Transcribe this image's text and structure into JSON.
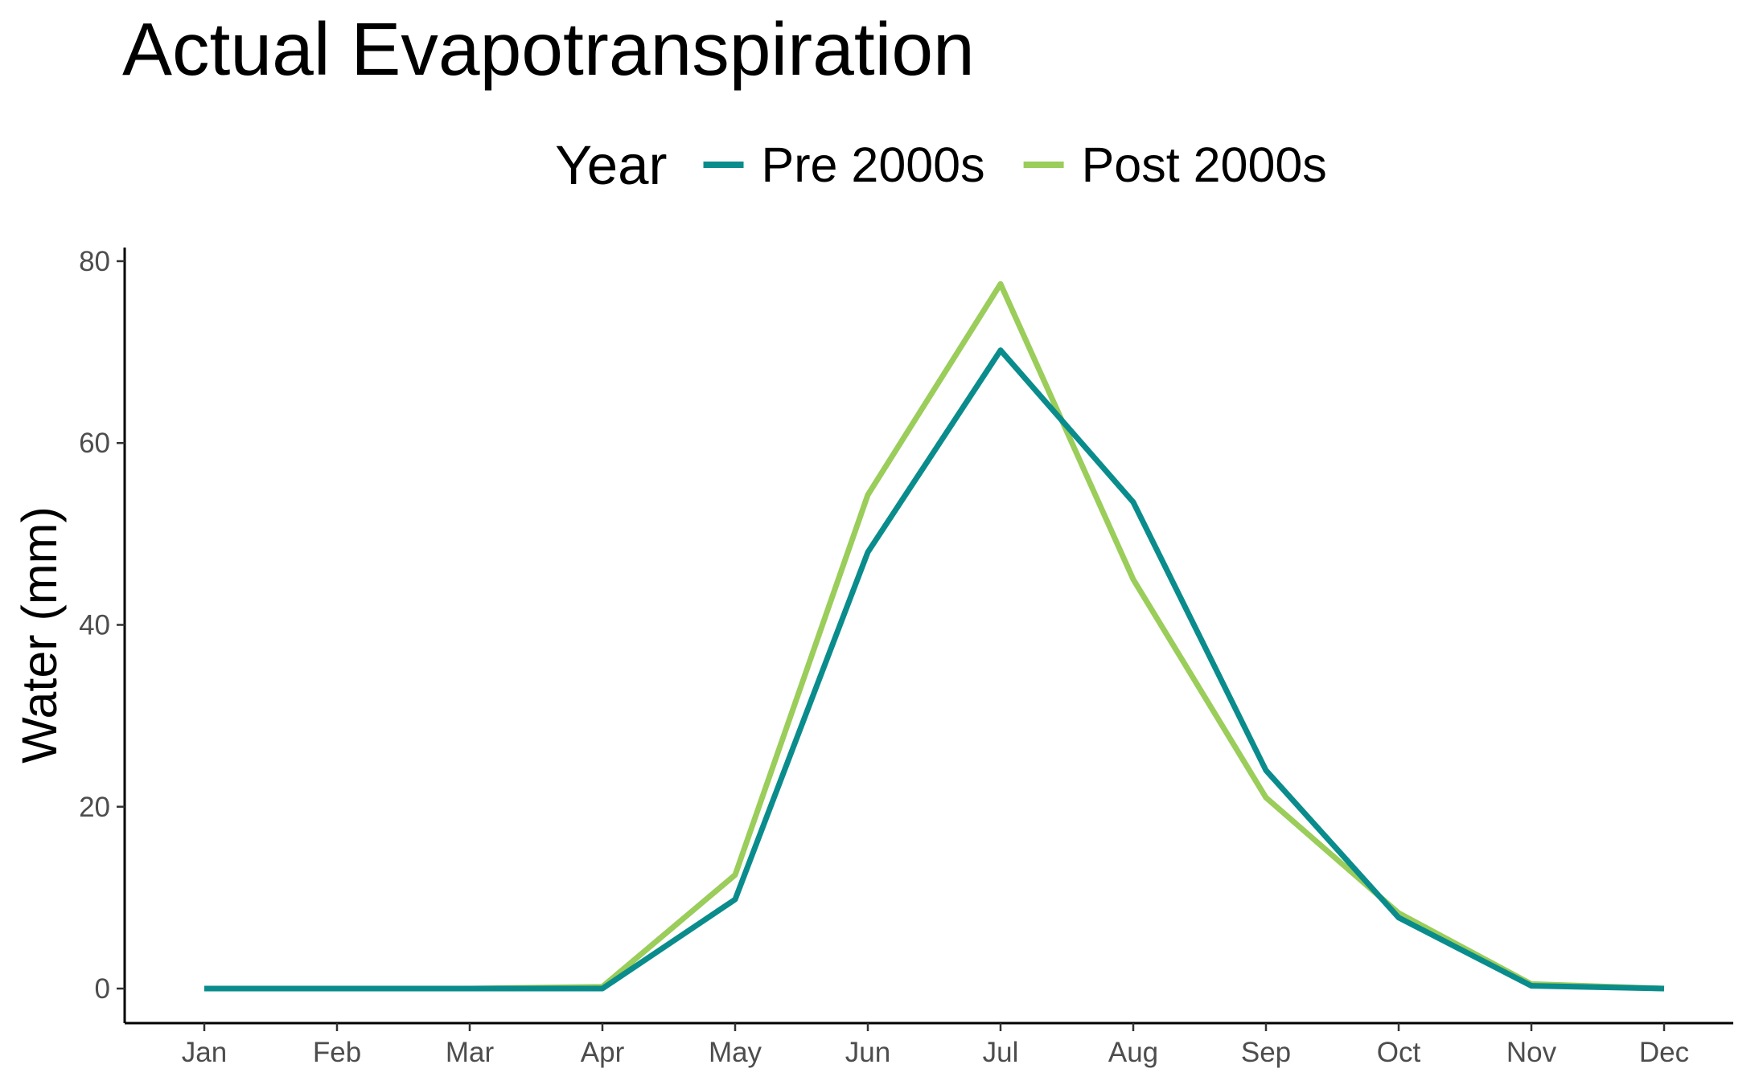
{
  "chart_data": {
    "type": "line",
    "title": "Actual Evapotranspiration",
    "xlabel": "",
    "ylabel": "Water (mm)",
    "categories": [
      "Jan",
      "Feb",
      "Mar",
      "Apr",
      "May",
      "Jun",
      "Jul",
      "Aug",
      "Sep",
      "Oct",
      "Nov",
      "Dec"
    ],
    "ylim": [
      -3.8,
      81.5
    ],
    "yticks": [
      0,
      20,
      40,
      60,
      80
    ],
    "grid": false,
    "legend": {
      "title": "Year",
      "position": "top"
    },
    "series": [
      {
        "name": "Post 2000s",
        "color": "#9ACD5A",
        "values": [
          0,
          0,
          0,
          0.2,
          12.5,
          54.3,
          77.5,
          45,
          21,
          8.3,
          0.5,
          0
        ]
      },
      {
        "name": "Pre 2000s",
        "color": "#0A8C8C",
        "values": [
          0,
          0,
          0,
          0,
          9.8,
          48,
          70.2,
          53.5,
          24,
          7.8,
          0.3,
          0
        ]
      }
    ]
  }
}
